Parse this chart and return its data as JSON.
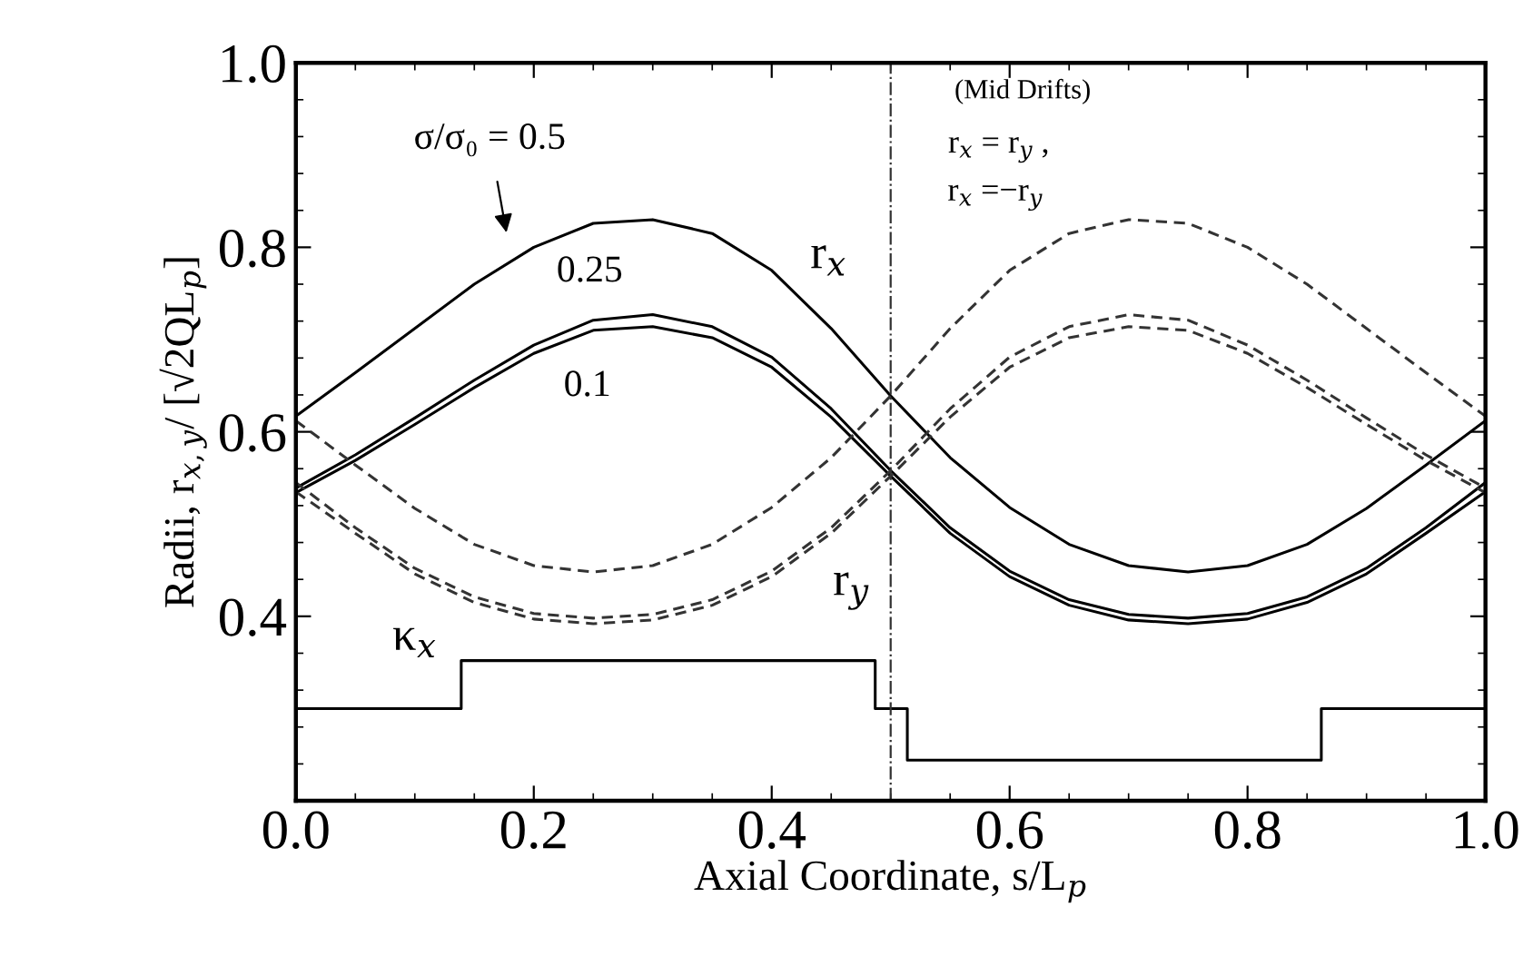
{
  "chart_data": {
    "type": "line",
    "xlabel": "Axial Coordinate, s/L$_{p}$",
    "ylabel": "Radii, r$_{x,y}$/ [√2QL$_{p}$]",
    "x": [
      0,
      0.05,
      0.1,
      0.15,
      0.2,
      0.25,
      0.3,
      0.35,
      0.4,
      0.45,
      0.5,
      0.55,
      0.6,
      0.65,
      0.7,
      0.75,
      0.8,
      0.85,
      0.9,
      0.95,
      1.0
    ],
    "series": [
      {
        "color": "#000000",
        "line_style": "solid",
        "values": [
          0.617,
          0.664,
          0.712,
          0.76,
          0.8,
          0.826,
          0.83,
          0.815,
          0.775,
          0.712,
          0.639,
          0.572,
          0.518,
          0.478,
          0.455,
          0.448,
          0.455,
          0.478,
          0.517,
          0.564,
          0.612
        ]
      },
      {
        "color": "#000000",
        "line_style": "solid",
        "values": [
          0.539,
          0.575,
          0.615,
          0.656,
          0.694,
          0.721,
          0.727,
          0.714,
          0.681,
          0.625,
          0.558,
          0.496,
          0.449,
          0.418,
          0.402,
          0.398,
          0.403,
          0.421,
          0.452,
          0.496,
          0.545
        ]
      },
      {
        "color": "#000000",
        "line_style": "solid",
        "values": [
          0.534,
          0.569,
          0.608,
          0.648,
          0.685,
          0.71,
          0.714,
          0.702,
          0.67,
          0.616,
          0.552,
          0.49,
          0.443,
          0.412,
          0.396,
          0.392,
          0.397,
          0.415,
          0.446,
          0.49,
          0.535
        ]
      },
      {
        "color": "#333333",
        "line_style": "dashed",
        "values": [
          0.612,
          0.564,
          0.517,
          0.478,
          0.455,
          0.448,
          0.455,
          0.478,
          0.518,
          0.572,
          0.639,
          0.712,
          0.775,
          0.815,
          0.83,
          0.826,
          0.8,
          0.76,
          0.712,
          0.664,
          0.617
        ]
      },
      {
        "color": "#333333",
        "line_style": "dashed",
        "values": [
          0.545,
          0.496,
          0.452,
          0.421,
          0.403,
          0.398,
          0.402,
          0.418,
          0.449,
          0.496,
          0.558,
          0.625,
          0.681,
          0.714,
          0.727,
          0.721,
          0.694,
          0.656,
          0.615,
          0.575,
          0.539
        ]
      },
      {
        "color": "#333333",
        "line_style": "dashed",
        "values": [
          0.535,
          0.49,
          0.446,
          0.415,
          0.397,
          0.392,
          0.396,
          0.412,
          0.443,
          0.49,
          0.552,
          0.616,
          0.67,
          0.702,
          0.714,
          0.71,
          0.685,
          0.648,
          0.608,
          0.569,
          0.534
        ]
      },
      {
        "type": "step",
        "color": "#000000",
        "line_style": "solid",
        "x": [
          0,
          0.139,
          0.487,
          0.514,
          0.862,
          1.0
        ],
        "values": [
          0.3,
          0.352,
          0.3,
          0.244,
          0.3,
          0.3
        ]
      }
    ],
    "xlim": [
      0,
      1
    ],
    "ylim": [
      0.2,
      1.0
    ],
    "xticks": [
      {
        "value": 0,
        "label": "0.0"
      },
      0.2,
      0.4,
      0.6,
      0.8,
      {
        "value": 1,
        "label": "1.0"
      }
    ],
    "yticks": [
      {
        "value": 0.2,
        "label": null
      },
      0.4,
      0.6,
      0.8,
      {
        "value": 1,
        "label": "1.0"
      }
    ],
    "ref_lines": [
      {
        "axis": "x",
        "value": 0.5,
        "label": null,
        "color": "#333333",
        "line_style": "dashdot"
      }
    ],
    "annotations": [
      "σ/σ₀ = 0.5",
      "0.25",
      "0.1",
      "r$_{x}$",
      "r$_{y}$",
      "κ$_{x}$",
      "(Mid Drifts)",
      "r$_{x}$ = r$_{y}$ ,",
      "r$_{x}$ =−r$_{y}$"
    ],
    "grid": false,
    "legend": false,
    "marker": "none"
  }
}
